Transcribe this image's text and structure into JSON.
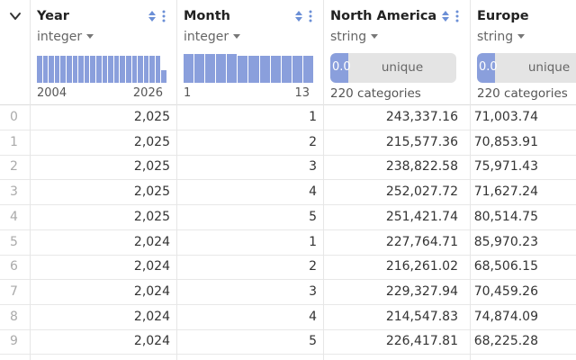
{
  "columns": [
    {
      "name": "Year",
      "type": "integer",
      "kind": "numeric",
      "range_min": "2004",
      "range_max": "2026",
      "histogram": [
        0.92,
        0.92,
        0.92,
        0.92,
        0.92,
        0.92,
        0.92,
        0.92,
        0.92,
        0.92,
        0.92,
        0.92,
        0.92,
        0.92,
        0.92,
        0.92,
        0.92,
        0.92,
        0.92,
        0.92,
        0.92,
        0.42
      ]
    },
    {
      "name": "Month",
      "type": "integer",
      "kind": "numeric",
      "range_min": "1",
      "range_max": "13",
      "histogram": [
        0.96,
        0.96,
        0.96,
        0.96,
        0.96,
        0.9,
        0.9,
        0.9,
        0.9,
        0.9,
        0.9,
        0.9
      ]
    },
    {
      "name": "North America",
      "type": "string",
      "kind": "categorical",
      "unique_pct": "0.0",
      "unique_label": "unique",
      "categories": "220 categories",
      "unique_fill": 0.14
    },
    {
      "name": "Europe",
      "type": "string",
      "kind": "categorical",
      "unique_pct": "0.0",
      "unique_label": "unique",
      "categories": "220 categories",
      "unique_fill": 0.14
    }
  ],
  "rows": [
    {
      "index": "0",
      "year": "2,025",
      "month": "1",
      "north_america": "243,337.16",
      "europe": "71,003.74"
    },
    {
      "index": "1",
      "year": "2,025",
      "month": "2",
      "north_america": "215,577.36",
      "europe": "70,853.91"
    },
    {
      "index": "2",
      "year": "2,025",
      "month": "3",
      "north_america": "238,822.58",
      "europe": "75,971.43"
    },
    {
      "index": "3",
      "year": "2,025",
      "month": "4",
      "north_america": "252,027.72",
      "europe": "71,627.24"
    },
    {
      "index": "4",
      "year": "2,025",
      "month": "5",
      "north_america": "251,421.74",
      "europe": "80,514.75"
    },
    {
      "index": "5",
      "year": "2,024",
      "month": "1",
      "north_america": "227,764.71",
      "europe": "85,970.23"
    },
    {
      "index": "6",
      "year": "2,024",
      "month": "2",
      "north_america": "216,261.02",
      "europe": "68,506.15"
    },
    {
      "index": "7",
      "year": "2,024",
      "month": "3",
      "north_america": "229,327.94",
      "europe": "70,459.26"
    },
    {
      "index": "8",
      "year": "2,024",
      "month": "4",
      "north_america": "214,547.83",
      "europe": "74,874.09"
    },
    {
      "index": "9",
      "year": "2,024",
      "month": "5",
      "north_america": "226,417.81",
      "europe": "68,225.28"
    }
  ],
  "colors": {
    "accent": "#8a9fdc",
    "sort_icon": "#6b8fd6"
  },
  "icons": {
    "collapse": "chevron-down-icon",
    "sort": "sort-icon",
    "more": "more-vertical-icon"
  }
}
